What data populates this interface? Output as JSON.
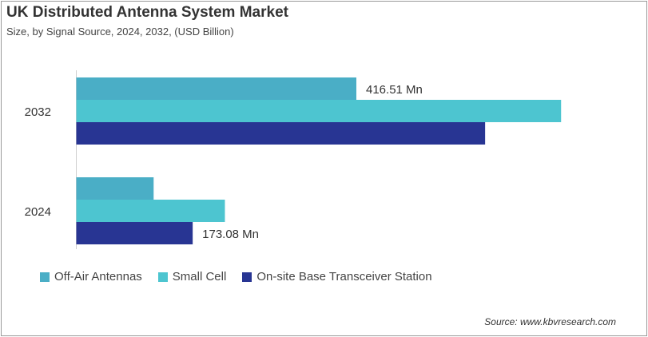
{
  "chart_data": {
    "type": "bar",
    "orientation": "horizontal",
    "title": "UK Distributed  Antenna System Market",
    "subtitle": "Size, by Signal Source, 2024, 2032, (USD Billion)",
    "categories": [
      "2032",
      "2024"
    ],
    "series": [
      {
        "name": "Off-Air Antennas",
        "color": "#4aaec6",
        "values": [
          416.51,
          115
        ]
      },
      {
        "name": "Small Cell",
        "color": "#4dc5d0",
        "values": [
          721,
          221
        ]
      },
      {
        "name": "On-site Base Transceiver Station",
        "color": "#283593",
        "values": [
          608,
          173.08
        ]
      }
    ],
    "data_labels": [
      {
        "category": "2032",
        "series": "Off-Air Antennas",
        "text": "416.51  Mn"
      },
      {
        "category": "2024",
        "series": "On-site Base Transceiver Station",
        "text": "173.08  Mn"
      }
    ],
    "xlim": [
      0,
      730
    ],
    "grid": false,
    "legend": "bottom",
    "source": "Source: www.kbvresearch.com"
  }
}
